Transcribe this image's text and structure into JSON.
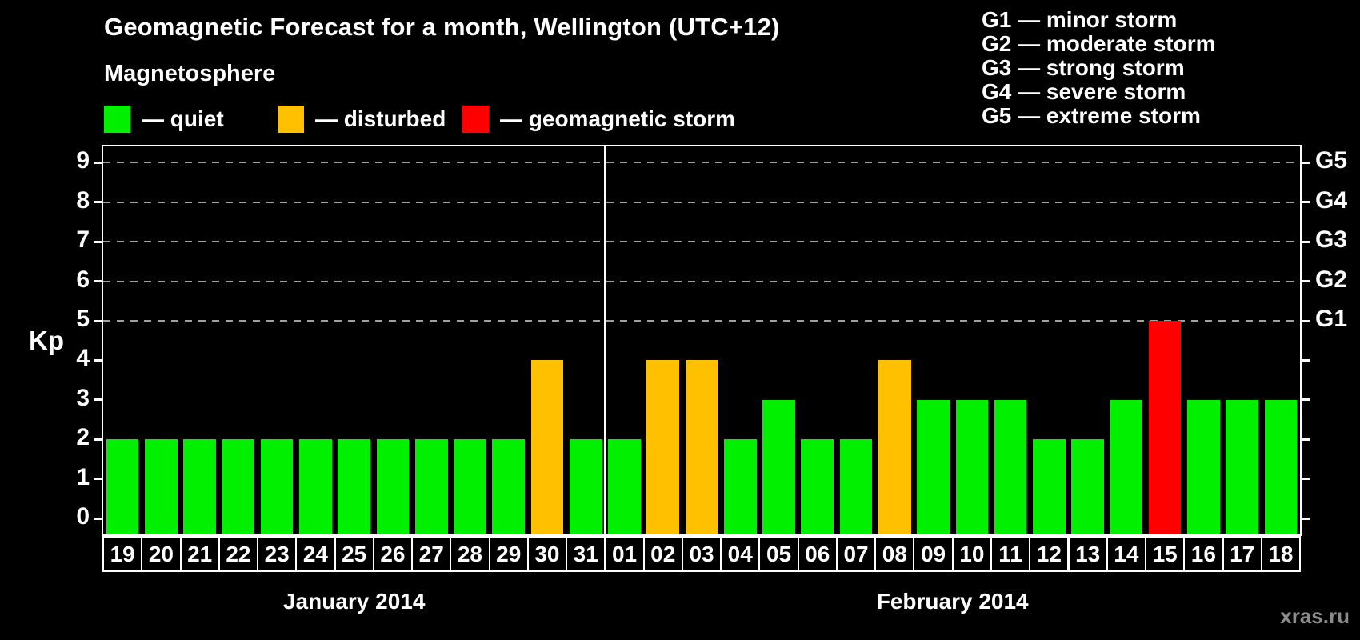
{
  "title": "Geomagnetic Forecast for a month, Wellington (UTC+12)",
  "subtitle": "Magnetosphere",
  "legend": {
    "quiet_label": "— quiet",
    "disturbed_label": "— disturbed",
    "storm_label": "— geomagnetic storm"
  },
  "g_scale_legend": {
    "lines": [
      "G1 — minor storm",
      "G2 — moderate storm",
      "G3 — strong storm",
      "G4 — severe storm",
      "G5 — extreme storm"
    ]
  },
  "watermark": "xras.ru",
  "colors": {
    "quiet": "#00f000",
    "disturbed": "#ffc000",
    "storm": "#ff0000",
    "grid": "#a0a0a0",
    "axis": "#ffffff",
    "background": "#000000",
    "watermark": "#8c8c8c"
  },
  "chart_data": {
    "type": "bar",
    "title": "Geomagnetic Forecast for a month, Wellington (UTC+12)",
    "ylabel": "Kp",
    "ylim": [
      0,
      9
    ],
    "yticks": [
      0,
      1,
      2,
      3,
      4,
      5,
      6,
      7,
      8,
      9
    ],
    "grid_levels": [
      5,
      6,
      7,
      8,
      9
    ],
    "grid_style": "dashed",
    "right_axis": [
      {
        "label": "G1",
        "kp": 5
      },
      {
        "label": "G2",
        "kp": 6
      },
      {
        "label": "G3",
        "kp": 7
      },
      {
        "label": "G4",
        "kp": 8
      },
      {
        "label": "G5",
        "kp": 9
      }
    ],
    "legend_position": "top-left",
    "months": [
      {
        "label": "January 2014",
        "days": [
          {
            "day": "19",
            "kp": 2,
            "status": "quiet"
          },
          {
            "day": "20",
            "kp": 2,
            "status": "quiet"
          },
          {
            "day": "21",
            "kp": 2,
            "status": "quiet"
          },
          {
            "day": "22",
            "kp": 2,
            "status": "quiet"
          },
          {
            "day": "23",
            "kp": 2,
            "status": "quiet"
          },
          {
            "day": "24",
            "kp": 2,
            "status": "quiet"
          },
          {
            "day": "25",
            "kp": 2,
            "status": "quiet"
          },
          {
            "day": "26",
            "kp": 2,
            "status": "quiet"
          },
          {
            "day": "27",
            "kp": 2,
            "status": "quiet"
          },
          {
            "day": "28",
            "kp": 2,
            "status": "quiet"
          },
          {
            "day": "29",
            "kp": 2,
            "status": "quiet"
          },
          {
            "day": "30",
            "kp": 4,
            "status": "disturbed"
          },
          {
            "day": "31",
            "kp": 2,
            "status": "quiet"
          }
        ]
      },
      {
        "label": "February 2014",
        "days": [
          {
            "day": "01",
            "kp": 2,
            "status": "quiet"
          },
          {
            "day": "02",
            "kp": 4,
            "status": "disturbed"
          },
          {
            "day": "03",
            "kp": 4,
            "status": "disturbed"
          },
          {
            "day": "04",
            "kp": 2,
            "status": "quiet"
          },
          {
            "day": "05",
            "kp": 3,
            "status": "quiet"
          },
          {
            "day": "06",
            "kp": 2,
            "status": "quiet"
          },
          {
            "day": "07",
            "kp": 2,
            "status": "quiet"
          },
          {
            "day": "08",
            "kp": 4,
            "status": "disturbed"
          },
          {
            "day": "09",
            "kp": 3,
            "status": "quiet"
          },
          {
            "day": "10",
            "kp": 3,
            "status": "quiet"
          },
          {
            "day": "11",
            "kp": 3,
            "status": "quiet"
          },
          {
            "day": "12",
            "kp": 2,
            "status": "quiet"
          },
          {
            "day": "13",
            "kp": 2,
            "status": "quiet"
          },
          {
            "day": "14",
            "kp": 3,
            "status": "quiet"
          },
          {
            "day": "15",
            "kp": 5,
            "status": "storm"
          },
          {
            "day": "16",
            "kp": 3,
            "status": "quiet"
          },
          {
            "day": "17",
            "kp": 3,
            "status": "quiet"
          },
          {
            "day": "18",
            "kp": 3,
            "status": "quiet"
          }
        ]
      }
    ]
  }
}
